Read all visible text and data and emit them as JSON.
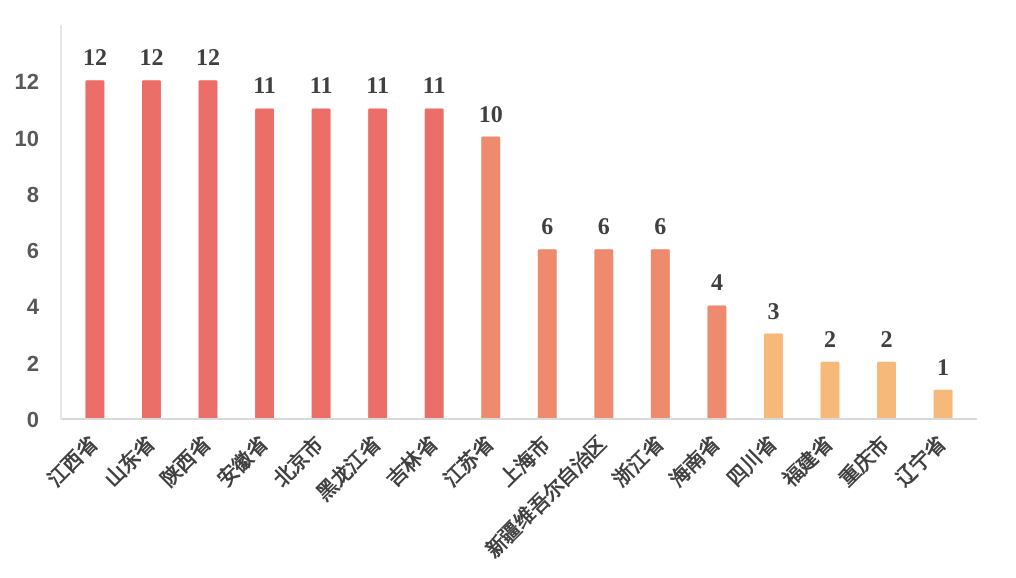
{
  "chart_data": {
    "type": "bar",
    "categories": [
      "江西省",
      "山东省",
      "陕西省",
      "安徽省",
      "北京市",
      "黑龙江省",
      "吉林省",
      "江苏省",
      "上海市",
      "新疆维吾尔自治区",
      "浙江省",
      "海南省",
      "四川省",
      "福建省",
      "重庆市",
      "辽宁省"
    ],
    "values": [
      12,
      12,
      12,
      11,
      11,
      11,
      11,
      10,
      6,
      6,
      6,
      4,
      3,
      2,
      2,
      1
    ],
    "colors": [
      "#eb6e68",
      "#eb6e68",
      "#eb6e68",
      "#eb6e68",
      "#eb6e68",
      "#eb6e68",
      "#eb6e68",
      "#ee8a6e",
      "#ee8a6e",
      "#ee8a6e",
      "#ee8a6e",
      "#ee8a6e",
      "#f6b97a",
      "#f6b97a",
      "#f6b97a",
      "#f6b97a"
    ],
    "ylim": [
      0,
      14
    ],
    "yticks": [
      0,
      2,
      4,
      6,
      8,
      10,
      12
    ],
    "grid": false,
    "data_labels": true
  }
}
